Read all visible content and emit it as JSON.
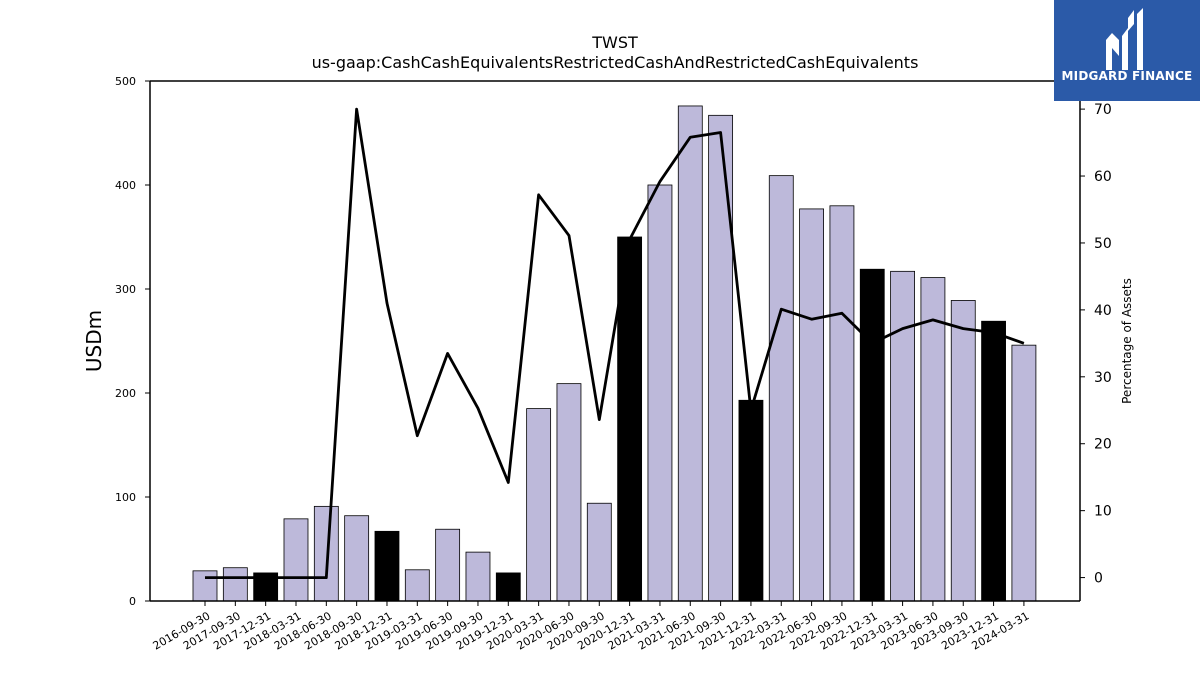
{
  "logo": {
    "text": "MIDGARD FINANCE",
    "background": "#2b5aa8"
  },
  "chart_data": {
    "type": "bar",
    "title": "TWST",
    "subtitle": "us-gaap:CashCashEquivalentsRestrictedCashAndRestrictedCashEquivalents",
    "ylabel": "USDm",
    "ylabel_right": "Percentage of Assets",
    "ylim": [
      0,
      500
    ],
    "ylim_right": [
      -3.5,
      74.2
    ],
    "yticks": [
      0,
      100,
      200,
      300,
      400,
      500
    ],
    "yticks_right": [
      0,
      10,
      20,
      30,
      40,
      50,
      60,
      70
    ],
    "categories": [
      "2016-09-30",
      "2017-09-30",
      "2017-12-31",
      "2018-03-31",
      "2018-06-30",
      "2018-09-30",
      "2018-12-31",
      "2019-03-31",
      "2019-06-30",
      "2019-09-30",
      "2019-12-31",
      "2020-03-31",
      "2020-06-30",
      "2020-09-30",
      "2020-12-31",
      "2021-03-31",
      "2021-06-30",
      "2021-09-30",
      "2021-12-31",
      "2022-03-31",
      "2022-06-30",
      "2022-09-30",
      "2022-12-31",
      "2023-03-31",
      "2023-06-30",
      "2023-09-30",
      "2023-12-31",
      "2024-03-31"
    ],
    "series": [
      {
        "type": "bar",
        "values": [
          29,
          32,
          27,
          79,
          91,
          82,
          67,
          30,
          69,
          47,
          27,
          185,
          209,
          94,
          350,
          400,
          476,
          467,
          193,
          409,
          377,
          380,
          319,
          317,
          311,
          289,
          269,
          246
        ],
        "highlight": [
          false,
          false,
          true,
          false,
          false,
          false,
          true,
          false,
          false,
          false,
          true,
          false,
          false,
          false,
          true,
          false,
          false,
          false,
          true,
          false,
          false,
          false,
          true,
          false,
          false,
          false,
          true,
          false
        ],
        "color": "#bdb9da",
        "highlight_color": "#000000"
      },
      {
        "type": "line",
        "axis": "right",
        "values": [
          0,
          0,
          0,
          0,
          0,
          70,
          41,
          21.2,
          33.5,
          25.3,
          14.2,
          57.2,
          51.1,
          23.6,
          50.5,
          59.2,
          65.8,
          66.5,
          25,
          40.1,
          38.6,
          39.5,
          35,
          37.2,
          38.5,
          37.2,
          36.6,
          35
        ],
        "color": "#000000"
      }
    ],
    "grid": false,
    "legend": "none"
  }
}
